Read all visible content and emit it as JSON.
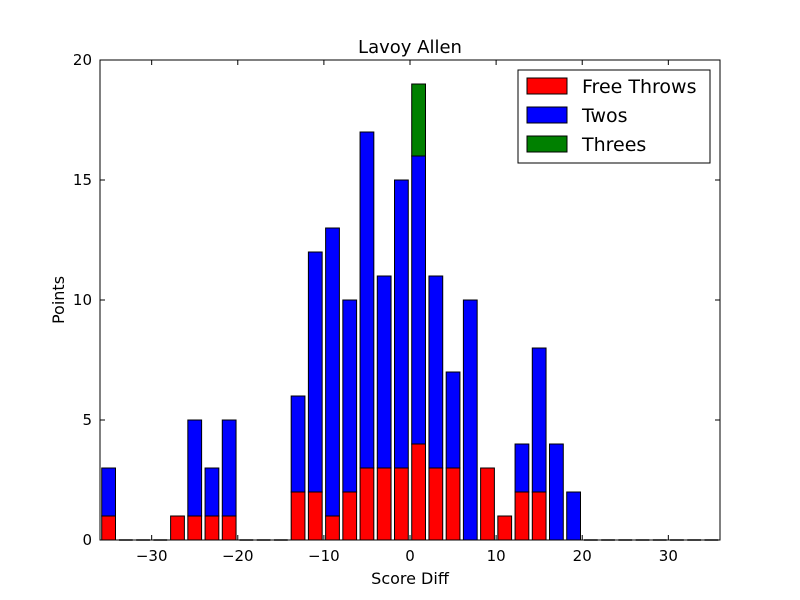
{
  "chart_data": {
    "type": "bar",
    "stacked": true,
    "title": "Lavoy Allen",
    "xlabel": "Score Diff",
    "ylabel": "Points",
    "xlim": [
      -36,
      36
    ],
    "ylim": [
      0,
      20
    ],
    "xticks": [
      -30,
      -20,
      -10,
      0,
      10,
      20,
      30
    ],
    "xtick_labels": [
      "−30",
      "−20",
      "−10",
      "0",
      "10",
      "20",
      "30"
    ],
    "yticks": [
      0,
      5,
      10,
      15,
      20
    ],
    "ytick_labels": [
      "0",
      "5",
      "10",
      "15",
      "20"
    ],
    "grid": false,
    "legend_position": "top-right",
    "bar_width": 1.6,
    "x": [
      -35,
      -27,
      -25,
      -23,
      -21,
      -13,
      -11,
      -9,
      -7,
      -5,
      -3,
      -1,
      1,
      3,
      5,
      7,
      9,
      11,
      13,
      15,
      17,
      19
    ],
    "series": [
      {
        "name": "Free Throws",
        "color": "#ff0000",
        "values": [
          1,
          1,
          1,
          1,
          1,
          2,
          2,
          1,
          2,
          3,
          3,
          3,
          4,
          3,
          3,
          0,
          3,
          1,
          2,
          2,
          0,
          0
        ]
      },
      {
        "name": "Twos",
        "color": "#0000ff",
        "values": [
          2,
          0,
          4,
          2,
          4,
          4,
          10,
          12,
          8,
          14,
          8,
          12,
          12,
          8,
          4,
          10,
          0,
          0,
          2,
          6,
          4,
          2
        ]
      },
      {
        "name": "Threes",
        "color": "#008000",
        "values": [
          0,
          0,
          0,
          0,
          0,
          0,
          0,
          0,
          0,
          0,
          0,
          0,
          3,
          0,
          0,
          0,
          0,
          0,
          0,
          0,
          0,
          0
        ]
      }
    ]
  }
}
